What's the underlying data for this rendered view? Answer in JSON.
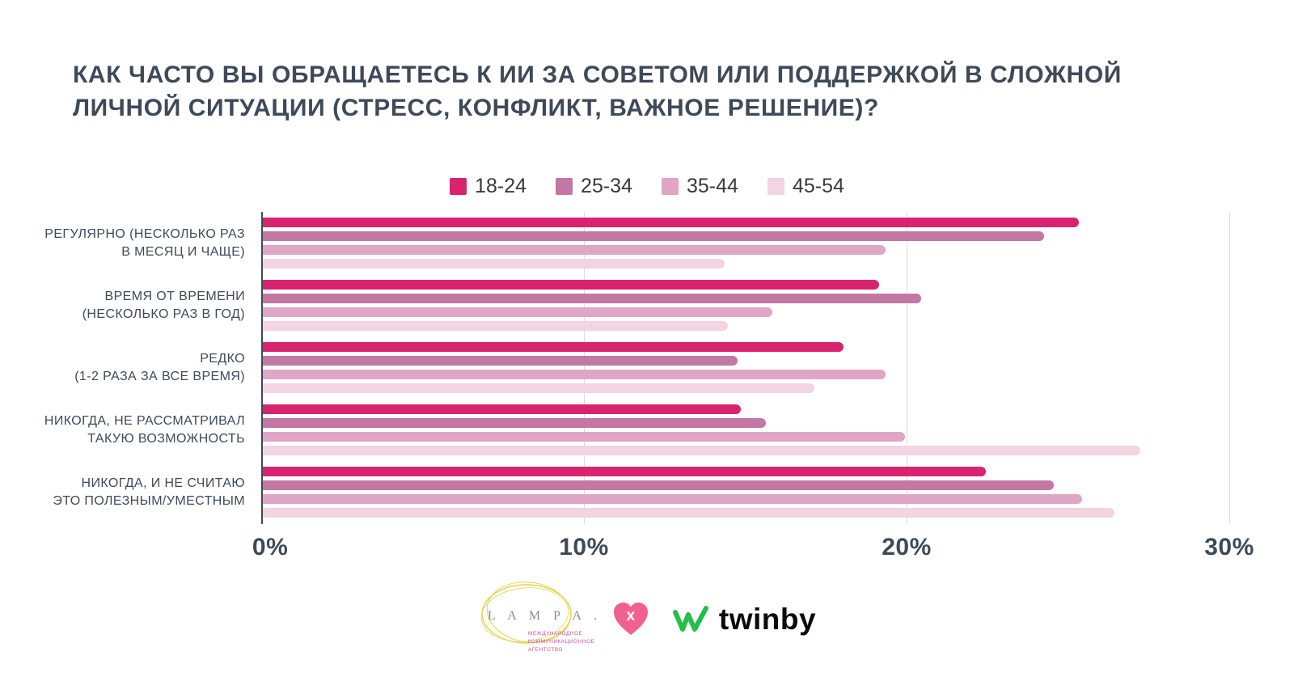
{
  "title": "КАК ЧАСТО ВЫ ОБРАЩАЕТЕСЬ К ИИ ЗА СОВЕТОМ ИЛИ ПОДДЕРЖКОЙ В СЛОЖНОЙ ЛИЧНОЙ СИТУАЦИИ (СТРЕСС, КОНФЛИКТ, ВАЖНОЕ РЕШЕНИЕ)?",
  "colors": {
    "title_text": "#3E4A59",
    "axis_line": "#3E4A59",
    "gridline": "#DCDCDC",
    "age_18_24": "#D8246F",
    "age_25_34": "#C377A3",
    "age_35_44": "#DFA6C5",
    "age_45_54": "#F2D4E2",
    "heart_pink": "#F1618E",
    "twinby_green": "#24BE4B",
    "lampa_yellow": "#E6D34F"
  },
  "chart_data": {
    "type": "bar",
    "orientation": "horizontal",
    "title": "КАК ЧАСТО ВЫ ОБРАЩАЕТЕСЬ К ИИ ЗА СОВЕТОМ ИЛИ ПОДДЕРЖКОЙ В СЛОЖНОЙ ЛИЧНОЙ СИТУАЦИИ (СТРЕСС, КОНФЛИКТ, ВАЖНОЕ РЕШЕНИЕ)?",
    "legend_position": "top-center",
    "grid": "vertical",
    "grid_values": [
      10,
      20,
      30
    ],
    "xlim": [
      0,
      30
    ],
    "x_ticks": [
      {
        "label": "0%",
        "value": 0
      },
      {
        "label": "10%",
        "value": 10
      },
      {
        "label": "20%",
        "value": 20
      },
      {
        "label": "30%",
        "value": 30
      }
    ],
    "categories": [
      "РЕГУЛЯРНО (НЕСКОЛЬКО РАЗ\nВ МЕСЯЦ И ЧАЩЕ)",
      "ВРЕМЯ ОТ ВРЕМЕНИ\n(НЕСКОЛЬКО РАЗ В ГОД)",
      "РЕДКО\n(1-2 РАЗА ЗА ВСЕ ВРЕМЯ)",
      "НИКОГДА, НЕ РАССМАТРИВАЛ\nТАКУЮ ВОЗМОЖНОСТЬ",
      "НИКОГДА, И НЕ СЧИТАЮ\nЭТО ПОЛЕЗНЫМ/УМЕСТНЫМ"
    ],
    "series": [
      {
        "name": "18-24",
        "color": "#D8246F",
        "values": [
          25.3,
          19.1,
          18.0,
          14.8,
          22.4
        ]
      },
      {
        "name": "25-34",
        "color": "#C377A3",
        "values": [
          24.2,
          20.4,
          14.7,
          15.6,
          24.5
        ]
      },
      {
        "name": "35-44",
        "color": "#DFA6C5",
        "values": [
          19.3,
          15.8,
          19.3,
          19.9,
          25.4
        ]
      },
      {
        "name": "45-54",
        "color": "#F2D4E2",
        "values": [
          14.3,
          14.4,
          17.1,
          27.2,
          26.4
        ]
      }
    ]
  },
  "footer": {
    "lampa_word": "L A M P A .",
    "lampa_sub": "МЕЖДУНАРОДНОЕ\nКОММУНИКАЦИОННОЕ\nАГЕНТСТВО",
    "heart_x": "x",
    "twinby_word": "twinby"
  }
}
